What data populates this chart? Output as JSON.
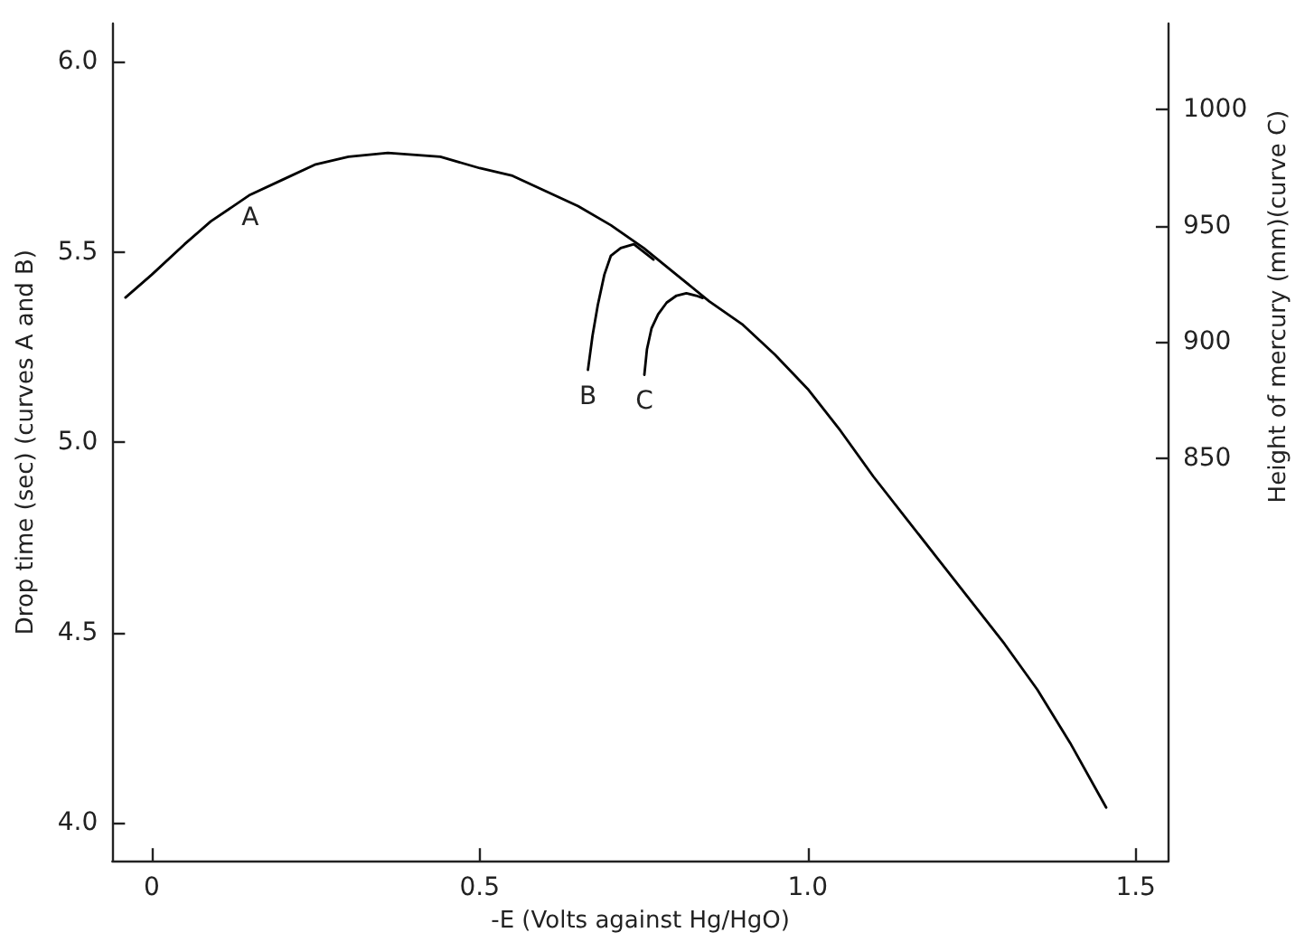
{
  "chart_data": {
    "type": "line",
    "xlabel": "-E (Volts against Hg/HgO)",
    "ylabel": "Drop time (sec) (curves A and B)",
    "y2label": "Height of mercury (mm)(curve C)",
    "xlim": [
      -0.06,
      1.55
    ],
    "xticks": [
      0,
      0.5,
      {
        "value": 1,
        "label": "1.0"
      },
      1.5
    ],
    "ylim": [
      3.9,
      6.1
    ],
    "yticks": [
      {
        "value": 4,
        "label": "4.0"
      },
      {
        "value": 4.5,
        "label": "4.5"
      },
      {
        "value": 5,
        "label": "5.0"
      },
      {
        "value": 5.5,
        "label": "5.5"
      },
      {
        "value": 6,
        "label": "6.0"
      }
    ],
    "y2lim": [
      677,
      1037
    ],
    "y2ticks": [
      850,
      900,
      950,
      1000
    ],
    "series": [
      {
        "name": "A",
        "color": "#000000",
        "x": [
          -0.04,
          0,
          0.05,
          0.09,
          0.15,
          0.2,
          0.25,
          0.3,
          0.36,
          0.44,
          0.5,
          0.55,
          0.6,
          0.65,
          0.7,
          0.75,
          0.8,
          0.85,
          0.9,
          0.95,
          1,
          1.05,
          1.1,
          1.15,
          1.2,
          1.25,
          1.3,
          1.35,
          1.4,
          1.455
        ],
        "values": [
          5.38,
          5.44,
          5.52,
          5.58,
          5.65,
          5.69,
          5.73,
          5.75,
          5.76,
          5.75,
          5.72,
          5.7,
          5.66,
          5.62,
          5.57,
          5.51,
          5.44,
          5.37,
          5.31,
          5.23,
          5.14,
          5.03,
          4.91,
          4.8,
          4.69,
          4.58,
          4.47,
          4.35,
          4.21,
          4.04
        ]
      },
      {
        "name": "B",
        "color": "#000000",
        "x": [
          0.665,
          0.672,
          0.68,
          0.69,
          0.7,
          0.715,
          0.735,
          0.75,
          0.765
        ],
        "values": [
          5.19,
          5.28,
          5.36,
          5.44,
          5.49,
          5.51,
          5.52,
          5.5,
          5.48
        ]
      },
      {
        "name": "C",
        "color": "#000000",
        "axis": "y2",
        "x": [
          0.751,
          0.755,
          0.762,
          0.772,
          0.785,
          0.8,
          0.815,
          0.83,
          0.84
        ],
        "values": [
          886,
          897,
          906,
          912,
          917,
          920,
          921,
          920,
          919
        ]
      }
    ]
  }
}
